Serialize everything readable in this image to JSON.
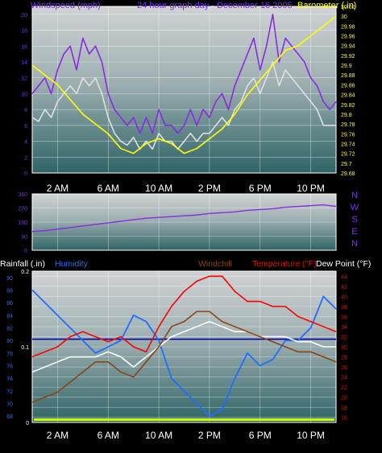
{
  "header": {
    "wind_title": "Windspeed (mph)",
    "graph_title": "24 hour graph day - December 16 2005",
    "baro_title": "Barometer (.in)"
  },
  "colors": {
    "wind_gust": "#8a2be2",
    "wind_avg": "#e0e0e0",
    "barometer": "#ffff00",
    "direction": "#8a2be2",
    "humidity": "#1e6fff",
    "temperature": "#ff0000",
    "windchill": "#8b4513",
    "dewpoint": "#ffffff",
    "rainfall": "#0000aa",
    "rainfall_bar": "#ccff00",
    "left_axis_label": "#7b2ff0",
    "right_axis_label": "#ffff00",
    "time_label": "#ffffff"
  },
  "chart_data": [
    {
      "type": "line",
      "name": "wind-barometer",
      "title": "24 hour graph day - December 16 2005",
      "x_ticks": [
        "2 AM",
        "6 AM",
        "10 AM",
        "2 PM",
        "6 PM",
        "10 PM"
      ],
      "y_left_label": "Windspeed (mph)",
      "y_left_ticks": [
        "0",
        "2",
        "4",
        "6",
        "8",
        "10",
        "12",
        "14",
        "16",
        "18",
        "20"
      ],
      "y_left_range": [
        0,
        21
      ],
      "y_right_label": "Barometer (.in)",
      "y_right_ticks": [
        "29.68",
        "29.7",
        "29.72",
        "29.74",
        "29.76",
        "29.78",
        "29.8",
        "29.82",
        "29.84",
        "29.86",
        "29.88",
        "29.9",
        "29.92",
        "29.94",
        "29.96",
        "29.98",
        "30",
        "30.02"
      ],
      "y_right_range": [
        29.68,
        30.02
      ],
      "x_range_hours": [
        0,
        24
      ],
      "grid": true,
      "series": [
        {
          "name": "Windspeed gust",
          "axis": "left",
          "x": [
            0,
            0.5,
            1,
            1.5,
            2,
            2.5,
            3,
            3.5,
            4,
            4.5,
            5,
            5.5,
            6,
            6.5,
            7,
            7.5,
            8,
            8.5,
            9,
            9.5,
            10,
            10.5,
            11,
            11.5,
            12,
            12.5,
            13,
            13.5,
            14,
            14.5,
            15,
            15.5,
            16,
            16.5,
            17,
            17.5,
            18,
            18.5,
            19,
            19.5,
            20,
            20.5,
            21,
            21.5,
            22,
            22.5,
            23,
            23.5,
            24
          ],
          "values": [
            10,
            11,
            12,
            10,
            13,
            15,
            16,
            13,
            17,
            15,
            16,
            14,
            10,
            8,
            7,
            6,
            7,
            5,
            7,
            5,
            8,
            6,
            6,
            5,
            6,
            8,
            6,
            8,
            7,
            9,
            10,
            8,
            11,
            13,
            15,
            17,
            13,
            16,
            20,
            14,
            17,
            16,
            15,
            14,
            12,
            11,
            9,
            8,
            9
          ]
        },
        {
          "name": "Windspeed average",
          "axis": "left",
          "x": [
            0,
            0.5,
            1,
            1.5,
            2,
            2.5,
            3,
            3.5,
            4,
            4.5,
            5,
            5.5,
            6,
            6.5,
            7,
            7.5,
            8,
            8.5,
            9,
            9.5,
            10,
            10.5,
            11,
            11.5,
            12,
            12.5,
            13,
            13.5,
            14,
            14.5,
            15,
            15.5,
            16,
            16.5,
            17,
            17.5,
            18,
            18.5,
            19,
            19.5,
            20,
            20.5,
            21,
            21.5,
            22,
            22.5,
            23,
            23.5,
            24
          ],
          "values": [
            7,
            6.5,
            8,
            7,
            9,
            10,
            11,
            10,
            12,
            11,
            12,
            10,
            7,
            5,
            4,
            3.5,
            4.5,
            3,
            4,
            3,
            5,
            4,
            4,
            3,
            4,
            5,
            4,
            5,
            5,
            6,
            7,
            6,
            8,
            9,
            11,
            12,
            10,
            12,
            14,
            11,
            13,
            12,
            11,
            10,
            9,
            8,
            6,
            6,
            6
          ]
        },
        {
          "name": "Barometer",
          "axis": "right",
          "x": [
            0,
            1,
            2,
            3,
            4,
            5,
            6,
            7,
            8,
            9,
            10,
            11,
            12,
            13,
            14,
            15,
            16,
            17,
            18,
            19,
            20,
            21,
            22,
            23,
            24
          ],
          "values": [
            29.9,
            29.88,
            29.86,
            29.83,
            29.8,
            29.78,
            29.76,
            29.73,
            29.72,
            29.74,
            29.75,
            29.74,
            29.72,
            29.73,
            29.75,
            29.77,
            29.8,
            29.84,
            29.87,
            29.9,
            29.93,
            29.94,
            29.96,
            29.98,
            30.0
          ]
        }
      ]
    },
    {
      "type": "line",
      "name": "wind-direction",
      "y_left_ticks": [
        "0",
        "90",
        "180",
        "270",
        "360"
      ],
      "y_left_range": [
        0,
        360
      ],
      "y_right_labels": [
        "N",
        "W",
        "S",
        "E",
        "N"
      ],
      "x_range_hours": [
        0,
        24
      ],
      "grid": true,
      "series": [
        {
          "name": "Wind direction",
          "x": [
            0,
            1,
            2,
            3,
            4,
            5,
            6,
            7,
            8,
            9,
            10,
            11,
            12,
            13,
            14,
            15,
            16,
            17,
            18,
            19,
            20,
            21,
            22,
            23,
            24
          ],
          "values": [
            120,
            125,
            135,
            145,
            155,
            165,
            175,
            185,
            195,
            205,
            210,
            215,
            220,
            225,
            235,
            240,
            245,
            255,
            260,
            265,
            275,
            280,
            285,
            290,
            280
          ]
        }
      ]
    },
    {
      "type": "line",
      "name": "temperature-humidity-rain",
      "x_ticks": [
        "2 AM",
        "6 AM",
        "10 AM",
        "2 PM",
        "6 PM",
        "10 PM"
      ],
      "legend": [
        "Rainfall (.in)",
        "Humidity",
        "Windchill",
        "Temperature (°F)",
        "Dew Point (°F)"
      ],
      "y_humidity_ticks": [
        "68",
        "70",
        "72",
        "74",
        "76",
        "78",
        "80",
        "82",
        "84",
        "86",
        "88",
        "90"
      ],
      "y_humidity_range": [
        67,
        91
      ],
      "y_rain_ticks": [
        "0",
        "0.1",
        "0.2"
      ],
      "y_rain_range": [
        0,
        0.2
      ],
      "y_temp_ticks": [
        "16",
        "18",
        "20",
        "22",
        "24",
        "26",
        "28",
        "30",
        "32",
        "34",
        "36",
        "38",
        "40",
        "42",
        "44"
      ],
      "y_temp_range": [
        15,
        45
      ],
      "x_range_hours": [
        0,
        24
      ],
      "grid": true,
      "series": [
        {
          "name": "Humidity",
          "axis": "humidity",
          "x": [
            0,
            1,
            2,
            3,
            4,
            5,
            6,
            7,
            8,
            9,
            10,
            11,
            12,
            13,
            14,
            15,
            16,
            17,
            18,
            19,
            20,
            21,
            22,
            23,
            24
          ],
          "values": [
            88,
            86,
            84,
            82,
            80,
            78,
            79,
            80,
            84,
            83,
            80,
            74,
            72,
            70,
            68,
            69,
            74,
            78,
            76,
            77,
            80,
            80,
            82,
            87,
            85
          ]
        },
        {
          "name": "Temperature",
          "axis": "temp",
          "x": [
            0,
            1,
            2,
            3,
            4,
            5,
            6,
            7,
            8,
            9,
            10,
            11,
            12,
            13,
            14,
            15,
            16,
            17,
            18,
            19,
            20,
            21,
            22,
            23,
            24
          ],
          "values": [
            28,
            29,
            30,
            32,
            33,
            32,
            31,
            32,
            30,
            29,
            34,
            38,
            41,
            43,
            44,
            44,
            41,
            39,
            39,
            38,
            38,
            36,
            35,
            34,
            33
          ]
        },
        {
          "name": "Windchill",
          "axis": "temp",
          "x": [
            0,
            1,
            2,
            3,
            4,
            5,
            6,
            7,
            8,
            9,
            10,
            11,
            12,
            13,
            14,
            15,
            16,
            17,
            18,
            19,
            20,
            21,
            22,
            23,
            24
          ],
          "values": [
            19,
            20,
            21,
            23,
            25,
            27,
            27,
            25,
            24,
            27,
            30,
            34,
            35,
            37,
            37,
            35,
            34,
            33,
            32,
            31,
            30,
            29,
            29,
            28,
            27
          ]
        },
        {
          "name": "Dew Point",
          "axis": "temp",
          "x": [
            0,
            1,
            2,
            3,
            4,
            5,
            6,
            7,
            8,
            9,
            10,
            11,
            12,
            13,
            14,
            15,
            16,
            17,
            18,
            19,
            20,
            21,
            22,
            23,
            24
          ],
          "values": [
            25,
            26,
            27,
            28,
            28,
            28,
            29,
            28,
            26,
            28,
            30,
            32,
            33,
            34,
            35,
            34,
            33,
            33,
            32,
            32,
            32,
            31,
            31,
            30,
            30
          ]
        },
        {
          "name": "Rainfall",
          "axis": "rain",
          "x": [
            0,
            24
          ],
          "values": [
            0.11,
            0.11
          ]
        }
      ]
    }
  ]
}
